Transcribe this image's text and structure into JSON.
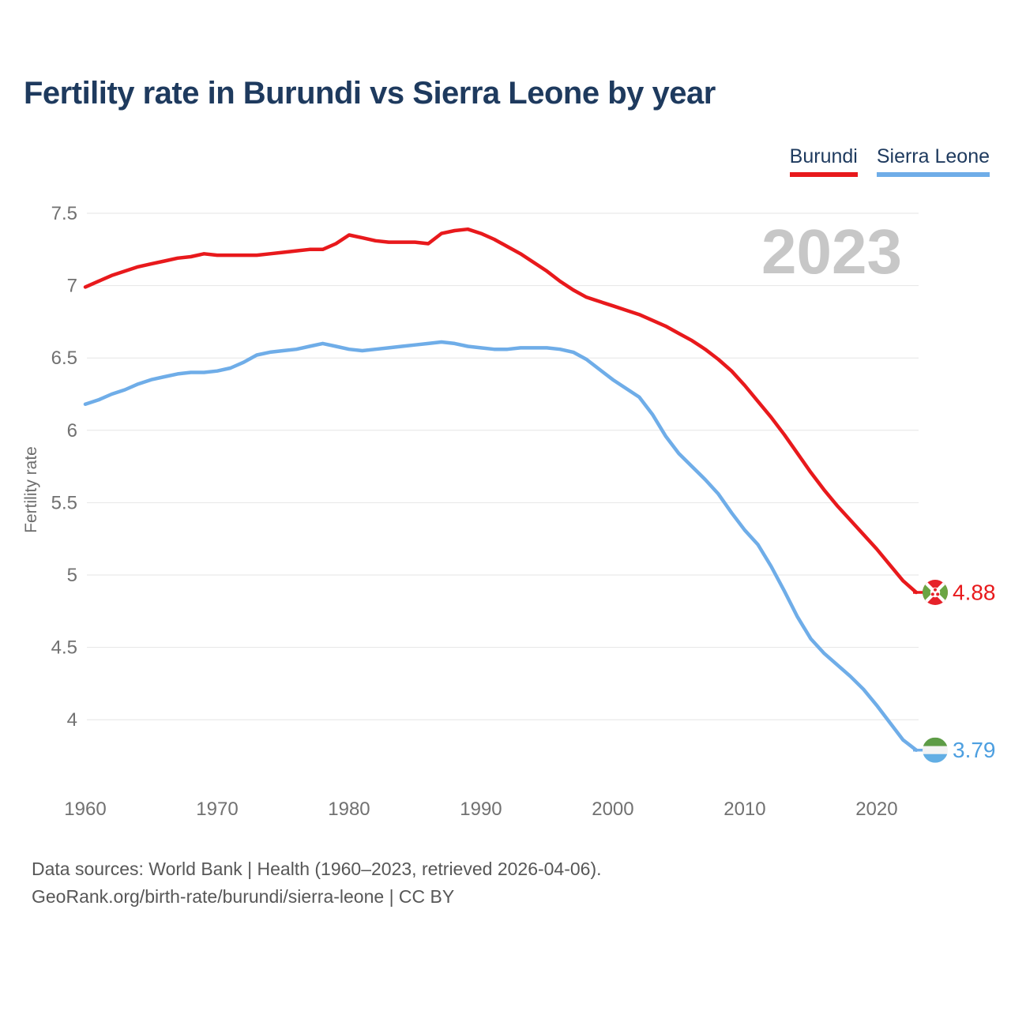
{
  "title": "Fertility rate in Burundi vs Sierra Leone by year",
  "watermark": "2023",
  "legend": [
    {
      "label": "Burundi",
      "color": "#e8191c"
    },
    {
      "label": "Sierra Leone",
      "color": "#6fade8"
    }
  ],
  "end_labels": {
    "burundi": "4.88",
    "sierra_leone": "3.79"
  },
  "footer": {
    "line1": "Data sources: World Bank | Health (1960–2023, retrieved 2026-04-06).",
    "line2": "GeoRank.org/birth-rate/burundi/sierra-leone | CC BY"
  },
  "chart_data": {
    "type": "line",
    "title": "Fertility rate in Burundi vs Sierra Leone by year",
    "xlabel": "",
    "ylabel": "Fertility rate",
    "xlim": [
      1960,
      2023
    ],
    "ylim": [
      3.6,
      7.6
    ],
    "grid": true,
    "legend_position": "top-right",
    "yticks": [
      4,
      4.5,
      5,
      5.5,
      6,
      6.5,
      7,
      7.5
    ],
    "xticks": [
      1960,
      1970,
      1980,
      1990,
      2000,
      2010,
      2020
    ],
    "x": [
      1960,
      1961,
      1962,
      1963,
      1964,
      1965,
      1966,
      1967,
      1968,
      1969,
      1970,
      1971,
      1972,
      1973,
      1974,
      1975,
      1976,
      1977,
      1978,
      1979,
      1980,
      1981,
      1982,
      1983,
      1984,
      1985,
      1986,
      1987,
      1988,
      1989,
      1990,
      1991,
      1992,
      1993,
      1994,
      1995,
      1996,
      1997,
      1998,
      1999,
      2000,
      2001,
      2002,
      2003,
      2004,
      2005,
      2006,
      2007,
      2008,
      2009,
      2010,
      2011,
      2012,
      2013,
      2014,
      2015,
      2016,
      2017,
      2018,
      2019,
      2020,
      2021,
      2022,
      2023
    ],
    "series": [
      {
        "name": "Burundi",
        "color": "#e8191c",
        "values": [
          6.99,
          7.03,
          7.07,
          7.1,
          7.13,
          7.15,
          7.17,
          7.19,
          7.2,
          7.22,
          7.21,
          7.21,
          7.21,
          7.21,
          7.22,
          7.23,
          7.24,
          7.25,
          7.25,
          7.29,
          7.35,
          7.33,
          7.31,
          7.3,
          7.3,
          7.3,
          7.29,
          7.36,
          7.38,
          7.39,
          7.36,
          7.32,
          7.27,
          7.22,
          7.16,
          7.1,
          7.03,
          6.97,
          6.92,
          6.89,
          6.86,
          6.83,
          6.8,
          6.76,
          6.72,
          6.67,
          6.62,
          6.56,
          6.49,
          6.41,
          6.31,
          6.2,
          6.09,
          5.97,
          5.84,
          5.71,
          5.59,
          5.48,
          5.38,
          5.28,
          5.18,
          5.07,
          4.96,
          4.88
        ]
      },
      {
        "name": "Sierra Leone",
        "color": "#6fade8",
        "values": [
          6.18,
          6.21,
          6.25,
          6.28,
          6.32,
          6.35,
          6.37,
          6.39,
          6.4,
          6.4,
          6.41,
          6.43,
          6.47,
          6.52,
          6.54,
          6.55,
          6.56,
          6.58,
          6.6,
          6.58,
          6.56,
          6.55,
          6.56,
          6.57,
          6.58,
          6.59,
          6.6,
          6.61,
          6.6,
          6.58,
          6.57,
          6.56,
          6.56,
          6.57,
          6.57,
          6.57,
          6.56,
          6.54,
          6.49,
          6.42,
          6.35,
          6.29,
          6.23,
          6.11,
          5.96,
          5.84,
          5.75,
          5.66,
          5.56,
          5.43,
          5.31,
          5.21,
          5.06,
          4.89,
          4.71,
          4.56,
          4.46,
          4.38,
          4.3,
          4.21,
          4.1,
          3.98,
          3.86,
          3.79
        ]
      }
    ]
  }
}
